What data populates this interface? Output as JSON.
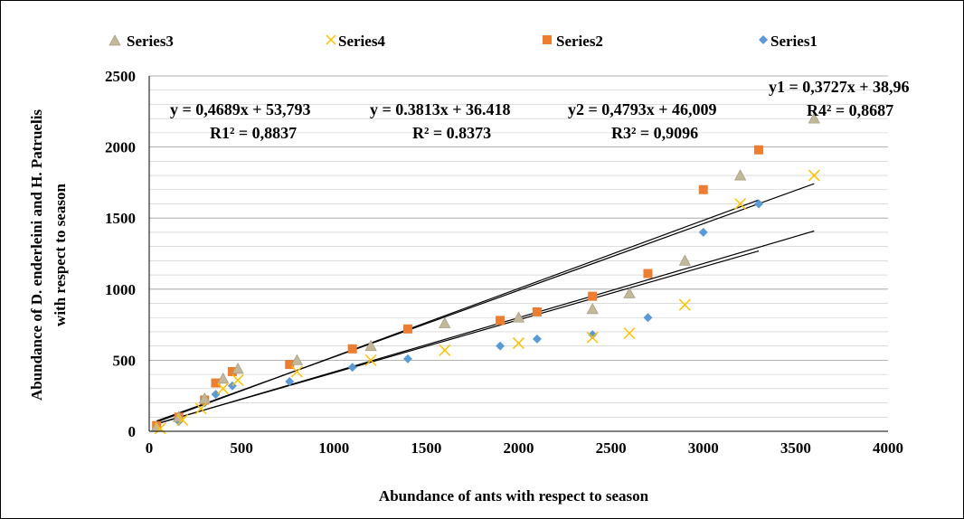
{
  "chart_data": {
    "type": "scatter",
    "xlabel": "Abundance of ants with respect to season",
    "ylabel_line1": "Abundance of  D. enderleini  and  H. Patruelis",
    "ylabel_line2": "with respect to season",
    "xlim": [
      0,
      4000
    ],
    "ylim": [
      0,
      2500
    ],
    "xticks": [
      0,
      500,
      1000,
      1500,
      2000,
      2500,
      3000,
      3500,
      4000
    ],
    "yticks": [
      0,
      500,
      1000,
      1500,
      2000,
      2500
    ],
    "grid": true,
    "legend_position": "top",
    "legend": [
      "Series3",
      "Series4",
      "Series2",
      "Series1"
    ],
    "series": [
      {
        "name": "Series1",
        "marker": "diamond",
        "color": "#5b9bd5",
        "points": [
          [
            40,
            20
          ],
          [
            160,
            70
          ],
          [
            300,
            200
          ],
          [
            360,
            260
          ],
          [
            450,
            320
          ],
          [
            760,
            350
          ],
          [
            1100,
            450
          ],
          [
            1400,
            510
          ],
          [
            1900,
            600
          ],
          [
            2100,
            650
          ],
          [
            2400,
            680
          ],
          [
            2700,
            800
          ],
          [
            3000,
            1400
          ],
          [
            3300,
            1600
          ]
        ]
      },
      {
        "name": "Series2",
        "marker": "square",
        "color": "#ed7d31",
        "points": [
          [
            40,
            40
          ],
          [
            160,
            100
          ],
          [
            300,
            220
          ],
          [
            360,
            340
          ],
          [
            450,
            420
          ],
          [
            760,
            470
          ],
          [
            1100,
            580
          ],
          [
            1400,
            720
          ],
          [
            1900,
            780
          ],
          [
            2100,
            840
          ],
          [
            2400,
            950
          ],
          [
            2700,
            1110
          ],
          [
            3000,
            1700
          ],
          [
            3300,
            1980
          ]
        ]
      },
      {
        "name": "Series3",
        "marker": "triangle",
        "color": "#c4b89a",
        "points": [
          [
            40,
            30
          ],
          [
            160,
            100
          ],
          [
            300,
            230
          ],
          [
            400,
            370
          ],
          [
            480,
            440
          ],
          [
            800,
            500
          ],
          [
            1200,
            600
          ],
          [
            1600,
            760
          ],
          [
            2000,
            800
          ],
          [
            2400,
            860
          ],
          [
            2600,
            970
          ],
          [
            2900,
            1200
          ],
          [
            3200,
            1800
          ],
          [
            3600,
            2200
          ]
        ]
      },
      {
        "name": "Series4",
        "marker": "x",
        "color": "#ffc000",
        "points": [
          [
            60,
            20
          ],
          [
            180,
            80
          ],
          [
            280,
            160
          ],
          [
            400,
            300
          ],
          [
            480,
            360
          ],
          [
            800,
            420
          ],
          [
            1200,
            500
          ],
          [
            1600,
            570
          ],
          [
            2000,
            620
          ],
          [
            2400,
            660
          ],
          [
            2600,
            690
          ],
          [
            2900,
            890
          ],
          [
            3200,
            1600
          ],
          [
            3600,
            1800
          ]
        ]
      }
    ],
    "trendlines": [
      {
        "slope": 0.4689,
        "intercept": 53.793,
        "x_range": [
          40,
          3600
        ]
      },
      {
        "slope": 0.4793,
        "intercept": 46.009,
        "x_range": [
          40,
          3300
        ]
      },
      {
        "slope": 0.3813,
        "intercept": 36.418,
        "x_range": [
          40,
          3600
        ]
      },
      {
        "slope": 0.3727,
        "intercept": 38.96,
        "x_range": [
          40,
          3300
        ]
      }
    ],
    "annotations": [
      {
        "eq": "y = 0,4689x + 53,793",
        "r2": "R1² = 0,8837"
      },
      {
        "eq": "y = 0.3813x + 36.418",
        "r2": "R² = 0.8373"
      },
      {
        "eq": "y2 = 0,4793x + 46,009",
        "r2": "R3² = 0,9096"
      },
      {
        "eq": "y1 = 0,3727x + 38,96",
        "r2": "R4² = 0,8687"
      }
    ]
  }
}
